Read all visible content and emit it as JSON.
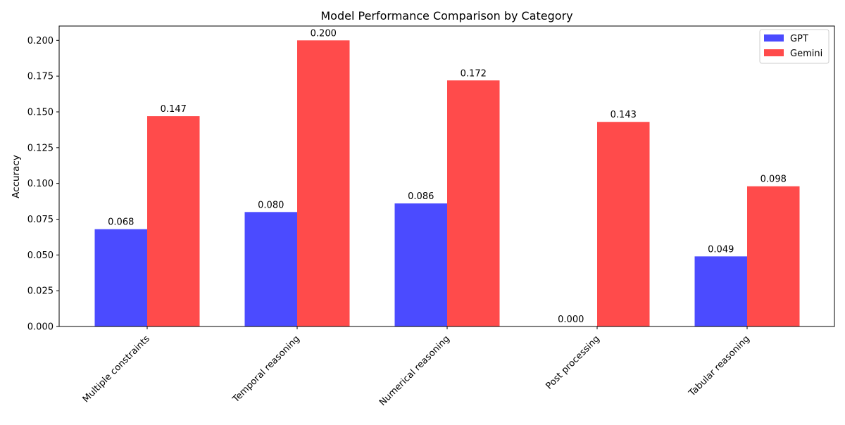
{
  "chart_data": {
    "type": "bar",
    "title": "Model Performance Comparison by Category",
    "xlabel": "",
    "ylabel": "Accuracy",
    "categories": [
      "Multiple constraints",
      "Temporal reasoning",
      "Numerical reasoning",
      "Post processing",
      "Tabular reasoning"
    ],
    "series": [
      {
        "name": "GPT",
        "values": [
          0.068,
          0.08,
          0.086,
          0.0,
          0.049
        ],
        "labels": [
          "0.068",
          "0.080",
          "0.086",
          "0.000",
          "0.049"
        ],
        "color": "#4b4bff"
      },
      {
        "name": "Gemini",
        "values": [
          0.147,
          0.2,
          0.172,
          0.143,
          0.098
        ],
        "labels": [
          "0.147",
          "0.200",
          "0.172",
          "0.143",
          "0.098"
        ],
        "color": "#ff4b4b"
      }
    ],
    "ylim": [
      0,
      0.21
    ],
    "yticks": [
      0.0,
      0.025,
      0.05,
      0.075,
      0.1,
      0.125,
      0.15,
      0.175,
      0.2
    ],
    "ytick_labels": [
      "0.000",
      "0.025",
      "0.050",
      "0.075",
      "0.100",
      "0.125",
      "0.150",
      "0.175",
      "0.200"
    ],
    "grid": false,
    "legend_position": "top-right",
    "x_tick_rotation": "45deg"
  }
}
